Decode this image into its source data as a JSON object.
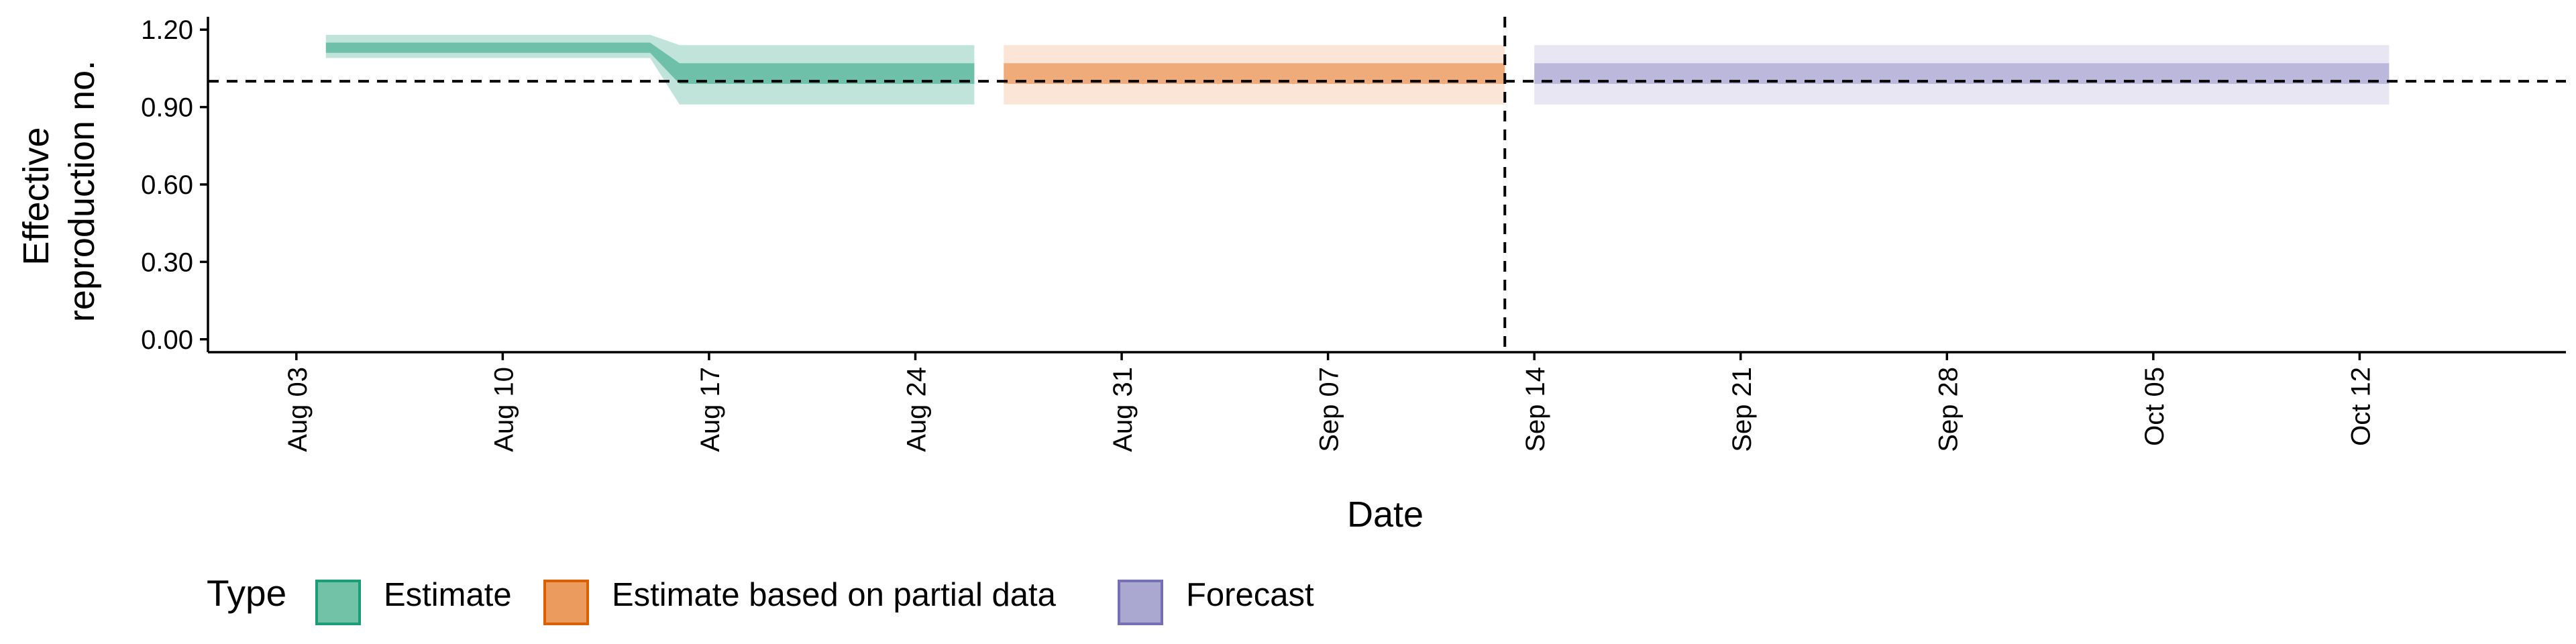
{
  "chart_data": {
    "type": "area",
    "xlabel": "Date",
    "ylabel_lines": [
      "Effective",
      "reproduction no."
    ],
    "x_ticks": [
      "2020-08-03",
      "2020-08-10",
      "2020-08-17",
      "2020-08-24",
      "2020-08-31",
      "2020-09-07",
      "2020-09-14",
      "2020-09-21",
      "2020-09-28",
      "2020-10-05",
      "2020-10-12"
    ],
    "x_tick_labels": [
      "Aug 03",
      "Aug 10",
      "Aug 17",
      "Aug 24",
      "Aug 31",
      "Sep 07",
      "Sep 14",
      "Sep 21",
      "Sep 28",
      "Oct 05",
      "Oct 12"
    ],
    "xlim": [
      "2020-07-31",
      "2020-10-19"
    ],
    "y_ticks": [
      0.0,
      0.3,
      0.6,
      0.9,
      1.2
    ],
    "y_tick_labels": [
      "0.00",
      "0.30",
      "0.60",
      "0.90",
      "1.20"
    ],
    "ylim": [
      -0.05,
      1.25
    ],
    "reference_hline": 1.0,
    "reference_vline": "2020-09-13",
    "legend": {
      "title": "Type",
      "position": "bottom",
      "items": [
        {
          "label": "Estimate",
          "fill": "#72c2a8",
          "stroke": "#1b9e77"
        },
        {
          "label": "Estimate based on partial data",
          "fill": "#ec9b5e",
          "stroke": "#d95f02"
        },
        {
          "label": "Forecast",
          "fill": "#aaa7d1",
          "stroke": "#7570b3"
        }
      ]
    },
    "series": [
      {
        "name": "Estimate",
        "outer_color": "#1b9e77",
        "inner_color": "#1b9e77",
        "points": [
          {
            "x": "2020-08-04",
            "lo90": 1.09,
            "hi90": 1.18,
            "lo50": 1.11,
            "hi50": 1.15
          },
          {
            "x": "2020-08-15",
            "lo90": 1.09,
            "hi90": 1.18,
            "lo50": 1.11,
            "hi50": 1.15
          },
          {
            "x": "2020-08-16",
            "lo90": 0.91,
            "hi90": 1.14,
            "lo50": 0.99,
            "hi50": 1.07
          },
          {
            "x": "2020-08-26",
            "lo90": 0.91,
            "hi90": 1.14,
            "lo50": 0.99,
            "hi50": 1.07
          }
        ]
      },
      {
        "name": "Estimate based on partial data",
        "outer_color": "#f0a16b",
        "inner_color": "#e6711e",
        "points": [
          {
            "x": "2020-08-27",
            "lo90": 0.91,
            "hi90": 1.14,
            "lo50": 0.99,
            "hi50": 1.07
          },
          {
            "x": "2020-09-13",
            "lo90": 0.91,
            "hi90": 1.14,
            "lo50": 0.99,
            "hi50": 1.07
          }
        ]
      },
      {
        "name": "Forecast",
        "outer_color": "#aaa7d1",
        "inner_color": "#8f8ac5",
        "points": [
          {
            "x": "2020-09-14",
            "lo90": 0.91,
            "hi90": 1.14,
            "lo50": 0.99,
            "hi50": 1.07
          },
          {
            "x": "2020-10-13",
            "lo90": 0.91,
            "hi90": 1.14,
            "lo50": 0.99,
            "hi50": 1.07
          }
        ]
      }
    ]
  }
}
